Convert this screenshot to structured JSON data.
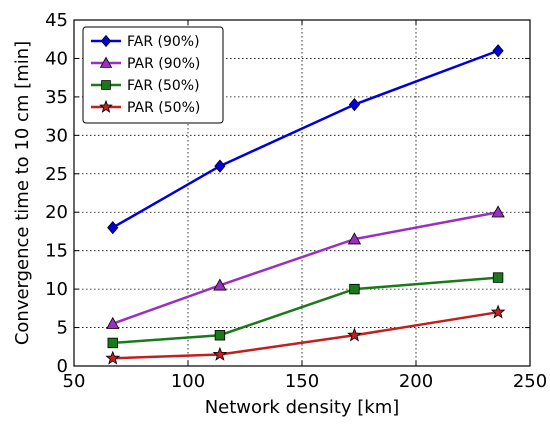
{
  "chart_data": {
    "type": "line",
    "xlabel": "Network density [km]",
    "ylabel": "Convergence time to 10 cm [min]",
    "xlim": [
      50,
      250
    ],
    "ylim": [
      0,
      45
    ],
    "xticks": [
      50,
      100,
      150,
      200,
      250
    ],
    "yticks": [
      0,
      5,
      10,
      15,
      20,
      25,
      30,
      35,
      40,
      45
    ],
    "grid": true,
    "legend_position": "top-left",
    "x": [
      67,
      114,
      173,
      236
    ],
    "series": [
      {
        "name": "FAR (90%)",
        "values": [
          18,
          26,
          34,
          41
        ],
        "color": "#0000dd",
        "marker": "diamond"
      },
      {
        "name": "PAR (90%)",
        "values": [
          5.5,
          10.5,
          16.5,
          20
        ],
        "color": "#9a2fc0",
        "marker": "triangle"
      },
      {
        "name": "FAR (50%)",
        "values": [
          3,
          4,
          10,
          11.5
        ],
        "color": "#1a7a1a",
        "marker": "square"
      },
      {
        "name": "PAR (50%)",
        "values": [
          1,
          1.5,
          4,
          7
        ],
        "color": "#c02020",
        "marker": "star"
      }
    ]
  }
}
